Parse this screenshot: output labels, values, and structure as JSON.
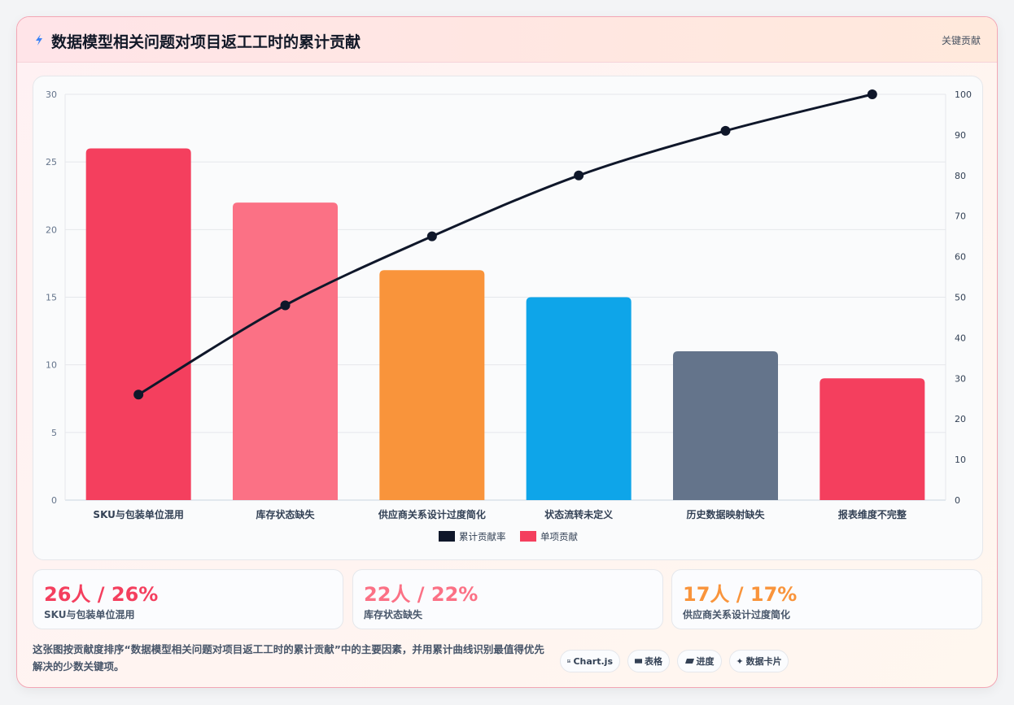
{
  "header": {
    "title": "数据模型相关问题对项目返工工时的累计贡献",
    "right_label": "关键贡献",
    "icon": "lightning-icon"
  },
  "chart_data": {
    "type": "bar",
    "categories": [
      "SKU与包装单位混用",
      "库存状态缺失",
      "供应商关系设计过度简化",
      "状态流转未定义",
      "历史数据映射缺失",
      "报表维度不完整"
    ],
    "series": [
      {
        "name": "单项贡献",
        "type": "bar",
        "axis": "left",
        "values": [
          26,
          22,
          17,
          15,
          11,
          9
        ],
        "colors": [
          "#f43f5e",
          "#fb7185",
          "#f9943b",
          "#0ea5e9",
          "#64748b",
          "#f43f5e"
        ]
      },
      {
        "name": "累计贡献率",
        "type": "line",
        "axis": "right",
        "values": [
          26,
          48,
          65,
          80,
          91,
          100
        ],
        "color": "#0f172a"
      }
    ],
    "y_left": {
      "min": 0,
      "max": 30,
      "ticks": [
        0,
        5,
        10,
        15,
        20,
        25,
        30
      ]
    },
    "y_right": {
      "min": 0,
      "max": 100,
      "ticks": [
        0,
        10,
        20,
        30,
        40,
        50,
        60,
        70,
        80,
        90,
        100
      ]
    },
    "legend": [
      {
        "name": "累计贡献率",
        "color": "#0f172a"
      },
      {
        "name": "单项贡献",
        "color": "#f43f5e"
      }
    ],
    "legend_position": "bottom",
    "grid": true
  },
  "kpis": [
    {
      "value": "26人 / 26%",
      "label": "SKU与包装单位混用",
      "color": "#f43f5e"
    },
    {
      "value": "22人 / 22%",
      "label": "库存状态缺失",
      "color": "#fb7185"
    },
    {
      "value": "17人 / 17%",
      "label": "供应商关系设计过度简化",
      "color": "#f9943b"
    }
  ],
  "footer": {
    "description": "这张图按贡献度排序“数据模型相关问题对项目返工工时的累计贡献”中的主要因素，并用累计曲线识别最值得优先解决的少数关键项。",
    "chips": [
      {
        "icon": "chart-icon",
        "label": "Chart.js"
      },
      {
        "icon": "table-icon",
        "label": "表格"
      },
      {
        "icon": "progress-icon",
        "label": "进度"
      },
      {
        "icon": "sparkle-icon",
        "label": "数据卡片"
      }
    ]
  }
}
